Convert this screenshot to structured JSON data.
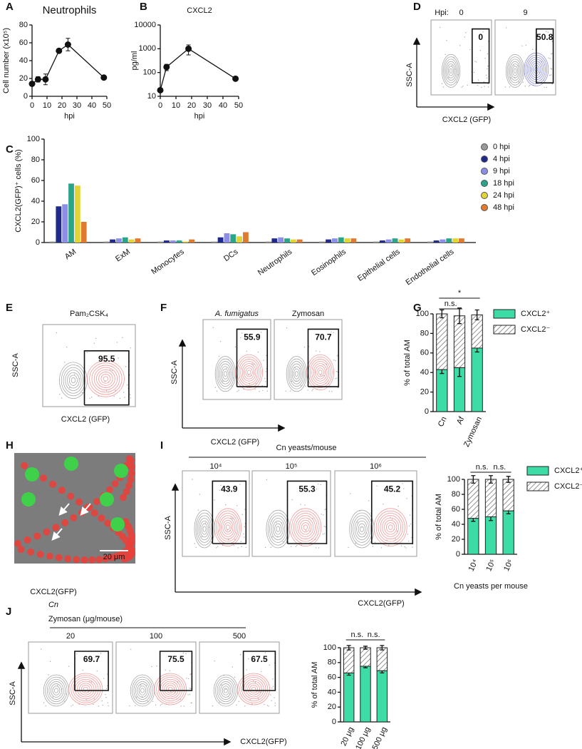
{
  "chart_data": [
    {
      "type": "line",
      "panel": "A",
      "title": "Neutrophils",
      "y_label": "Cell number (x10⁵)",
      "x_label": "hpi",
      "x": [
        0,
        4,
        9,
        18,
        24,
        48
      ],
      "values": [
        14,
        19,
        19,
        51,
        58,
        21
      ],
      "errors": [
        2,
        3,
        6,
        0,
        7,
        0
      ],
      "color": "#111111",
      "xlim": [
        0,
        50
      ],
      "xticks": [
        0,
        10,
        20,
        30,
        40,
        50
      ],
      "ylim": [
        0,
        80
      ],
      "yticks": [
        0,
        20,
        40,
        60,
        80
      ],
      "log": false
    },
    {
      "type": "line",
      "panel": "B",
      "title": "CXCL2",
      "y_label": "pg/ml",
      "x_label": "hpi",
      "x": [
        0,
        4,
        18,
        48
      ],
      "values": [
        18,
        170,
        1000,
        55
      ],
      "errors": [
        0,
        50,
        450,
        0
      ],
      "color": "#111111",
      "xlim": [
        0,
        50
      ],
      "xticks": [
        0,
        10,
        20,
        30,
        40,
        50
      ],
      "ylim": [
        10,
        10000
      ],
      "yticks": [
        10,
        100,
        1000,
        10000
      ],
      "log": true
    },
    {
      "type": "grouped_bar",
      "panel": "C",
      "y_label": "CXCL2(GFP)⁺ cells (%)",
      "categories": [
        "AM",
        "ExM",
        "Monocytes",
        "DCs",
        "Neutrophils",
        "Eosinophils",
        "Epithelial cells",
        "Endothelial cells"
      ],
      "series": [
        {
          "name": "0 hpi",
          "color": "#9a9a9a",
          "values": [
            1,
            1,
            1,
            1,
            1,
            1,
            1,
            1
          ]
        },
        {
          "name": "4 hpi",
          "color": "#1f2a8a",
          "values": [
            35,
            3,
            2,
            5,
            4,
            3,
            2,
            2
          ]
        },
        {
          "name": "9 hpi",
          "color": "#8c8ee8",
          "values": [
            37,
            4,
            2,
            9,
            5,
            4,
            3,
            3
          ]
        },
        {
          "name": "18 hpi",
          "color": "#2aa58a",
          "values": [
            57,
            5,
            2,
            8,
            4,
            5,
            4,
            4
          ]
        },
        {
          "name": "24 hpi",
          "color": "#e2d336",
          "values": [
            55,
            3,
            1,
            6,
            3,
            4,
            3,
            4
          ]
        },
        {
          "name": "48 hpi",
          "color": "#e07a30",
          "values": [
            20,
            4,
            3,
            10,
            3,
            4,
            4,
            4
          ]
        }
      ],
      "ylim": [
        0,
        100
      ],
      "yticks": [
        0,
        20,
        40,
        60,
        80,
        100
      ],
      "legend": true
    },
    {
      "type": "stacked_bar",
      "panel": "G",
      "y_label": "% of total AM",
      "categories": [
        "Cn",
        "Af",
        "Zymosan"
      ],
      "series": [
        {
          "name": "CXCL2⁺",
          "color": "#3ddba5",
          "values": [
            43,
            45,
            65
          ],
          "errors": [
            4,
            9,
            4
          ]
        },
        {
          "name": "CXCL2⁻",
          "color": "#888888",
          "hatched": true,
          "values": [
            57,
            53,
            34
          ],
          "errors": [
            4,
            8,
            5
          ]
        }
      ],
      "annotations": [
        "n.s.",
        "*"
      ],
      "ylim": [
        0,
        100
      ],
      "yticks": [
        0,
        20,
        40,
        60,
        80,
        100
      ],
      "legend": true
    },
    {
      "type": "stacked_bar",
      "panel": "",
      "y_label": "% of total AM",
      "x_label": "Cn yeasts per mouse",
      "categories": [
        "10⁴",
        "10⁵",
        "10⁶"
      ],
      "series": [
        {
          "name": "CXCL2⁺",
          "color": "#3ddba5",
          "values": [
            48,
            50,
            58
          ],
          "errors": [
            4,
            5,
            4
          ]
        },
        {
          "name": "CXCL2⁻",
          "color": "#888888",
          "hatched": true,
          "values": [
            52,
            50,
            42
          ],
          "errors": [
            5,
            5,
            4
          ]
        }
      ],
      "annotations": [
        "n.s.",
        "n.s."
      ],
      "ylim": [
        0,
        100
      ],
      "yticks": [
        0,
        20,
        40,
        60,
        80,
        100
      ],
      "legend": true
    },
    {
      "type": "stacked_bar",
      "panel": "",
      "y_label": "% of total AM",
      "categories": [
        "20 μg",
        "100 μg",
        "500 μg"
      ],
      "series": [
        {
          "name": "CXCL2⁺",
          "color": "#3ddba5",
          "values": [
            66,
            75,
            69
          ],
          "errors": [
            3,
            2,
            3
          ]
        },
        {
          "name": "CXCL2⁻",
          "color": "#888888",
          "hatched": true,
          "values": [
            34,
            25,
            31
          ],
          "errors": [
            3,
            2,
            3
          ]
        }
      ],
      "annotations": [
        "n.s.",
        "n.s."
      ],
      "ylim": [
        0,
        100
      ],
      "yticks": [
        0,
        20,
        40,
        60,
        80,
        100
      ],
      "legend": false
    }
  ],
  "flow_panels": [
    {
      "panel": "D",
      "header": "Hpi:",
      "plots": [
        {
          "label": "0",
          "gate": 0
        },
        {
          "label": "9",
          "gate": 50.8
        }
      ],
      "y_label": "SSC-A",
      "x_label": "CXCL2 (GFP)"
    },
    {
      "panel": "E",
      "plots": [
        {
          "label": "Pam₂CSK₄",
          "gate": 95.5
        }
      ],
      "y_label": "SSC-A",
      "x_label": "CXCL2 (GFP)"
    },
    {
      "panel": "F",
      "plots": [
        {
          "label": "A. fumigatus",
          "gate": 55.9
        },
        {
          "label": "Zymosan",
          "gate": 70.7
        }
      ],
      "y_label": "SSC-A",
      "x_label": "CXCL2 (GFP)"
    },
    {
      "panel": "I",
      "header": "Cn yeasts/mouse",
      "plots": [
        {
          "label": "10⁴",
          "gate": 43.9
        },
        {
          "label": "10⁵",
          "gate": 55.3
        },
        {
          "label": "10⁶",
          "gate": 45.2
        }
      ],
      "y_label": "SSC-A",
      "x_label": "CXCL2(GFP)"
    },
    {
      "panel": "J",
      "header": "Zymosan (μg/mouse)",
      "plots": [
        {
          "label": "20",
          "gate": 69.7
        },
        {
          "label": "100",
          "gate": 75.5
        },
        {
          "label": "500",
          "gate": 67.5
        }
      ],
      "y_label": "SSC-A",
      "x_label": "CXCL2(GFP)"
    }
  ],
  "image_panel": {
    "panel": "H",
    "scale_bar": "20 μm",
    "legend": [
      "CXCL2(GFP)",
      "Cn"
    ]
  }
}
